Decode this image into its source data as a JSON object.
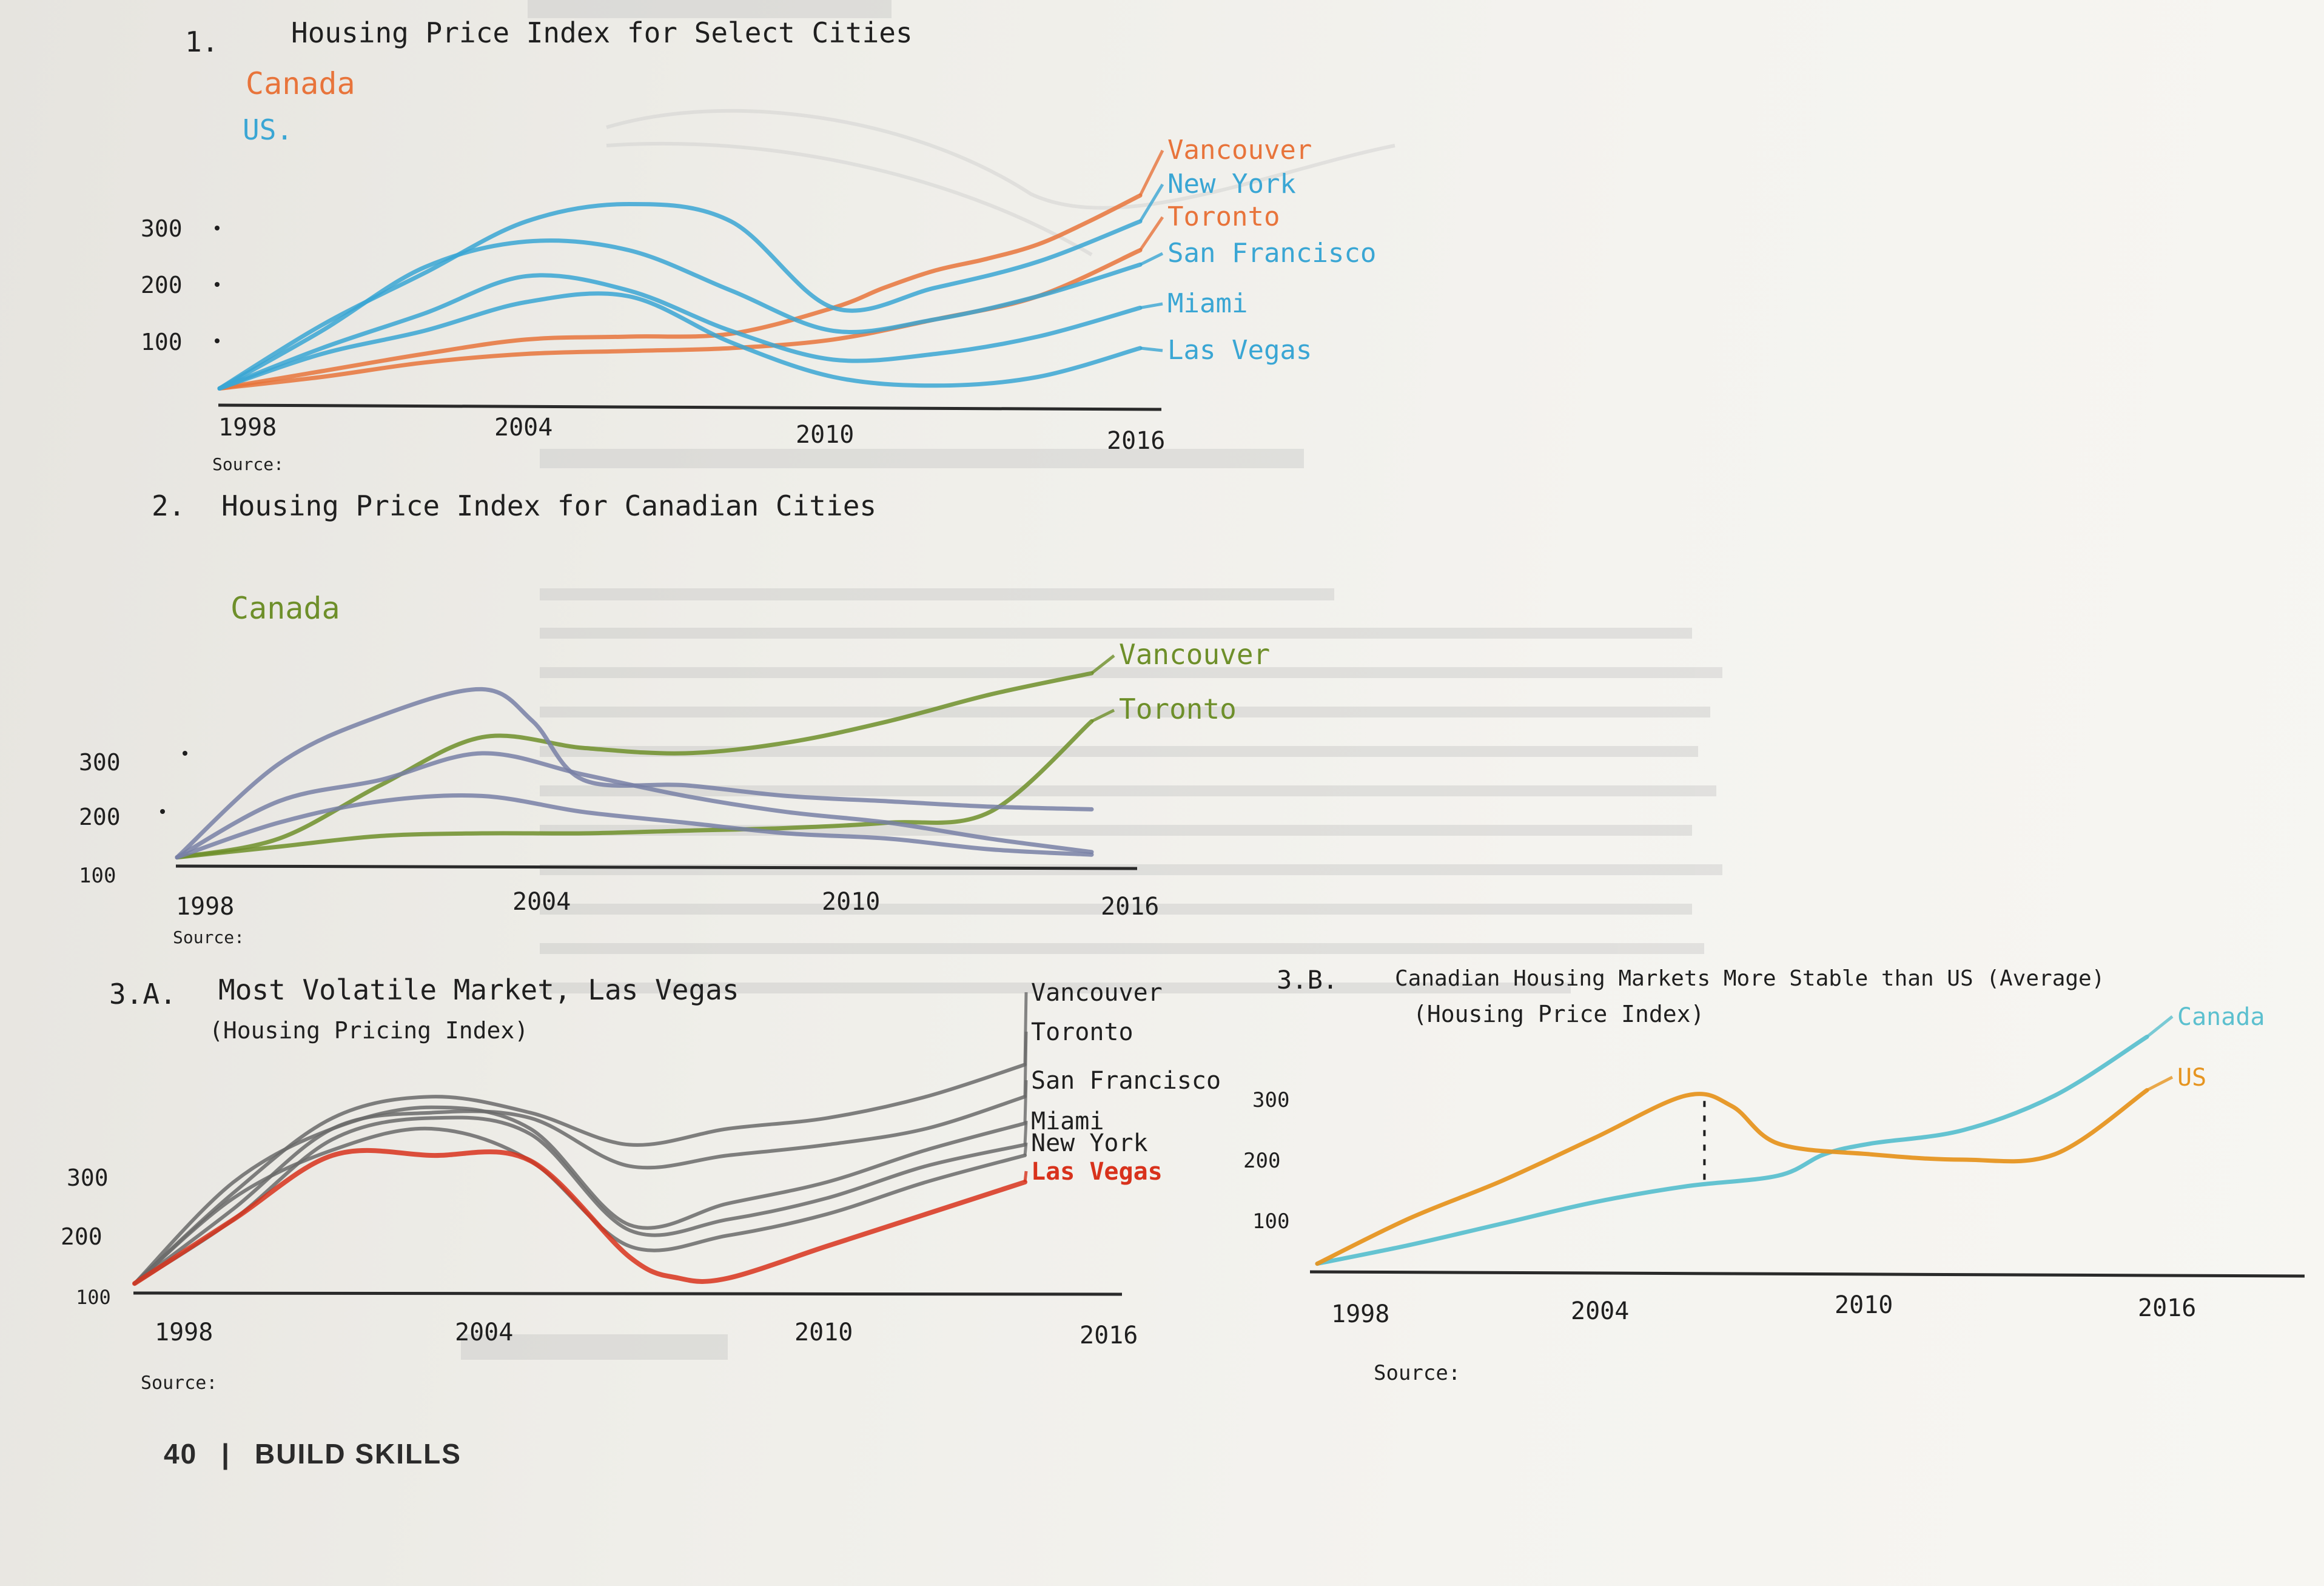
{
  "footer": {
    "page_number": "40",
    "separator": "|",
    "section": "BUILD SKILLS"
  },
  "colors": {
    "canada_orange": "#e8743b",
    "us_blue": "#3aa6d4",
    "green": "#6e8f2a",
    "slate": "#7880a6",
    "gray": "#6a6a6a",
    "red": "#d8321c",
    "amber": "#e69521",
    "teal": "#5cc0cf"
  },
  "chart_data": [
    {
      "type": "line",
      "number": "1.",
      "title": "Housing Price Index for Select Cities",
      "subtitle": "",
      "legend_key": [
        {
          "label": "Canada",
          "color": "#e8743b"
        },
        {
          "label": "US.",
          "color": "#3aa6d4"
        }
      ],
      "x_ticks": [
        "1998",
        "2004",
        "2010",
        "2016"
      ],
      "y_ticks": [
        "100",
        "200",
        "300"
      ],
      "source_label": "Source:",
      "xlim": [
        1998,
        2016
      ],
      "ylim": [
        0,
        380
      ],
      "series": [
        {
          "name": "Vancouver",
          "color": "#e8743b",
          "x": [
            1998,
            2000,
            2002,
            2004,
            2006,
            2008,
            2010,
            2011,
            2012,
            2013,
            2014,
            2015,
            2016
          ],
          "values": [
            10,
            40,
            70,
            95,
            100,
            105,
            150,
            185,
            215,
            235,
            260,
            300,
            345
          ]
        },
        {
          "name": "New York",
          "color": "#3aa6d4",
          "x": [
            1998,
            2000,
            2002,
            2004,
            2006,
            2008,
            2010,
            2012,
            2014,
            2016
          ],
          "values": [
            10,
            120,
            210,
            300,
            330,
            300,
            150,
            185,
            230,
            300
          ]
        },
        {
          "name": "Toronto",
          "color": "#e8743b",
          "x": [
            1998,
            2000,
            2002,
            2004,
            2006,
            2008,
            2010,
            2012,
            2014,
            2016
          ],
          "values": [
            10,
            30,
            55,
            70,
            75,
            80,
            95,
            130,
            170,
            250
          ]
        },
        {
          "name": "San Francisco",
          "color": "#3aa6d4",
          "x": [
            1998,
            2000,
            2002,
            2004,
            2006,
            2008,
            2010,
            2012,
            2014,
            2016
          ],
          "values": [
            10,
            110,
            220,
            265,
            250,
            180,
            110,
            130,
            170,
            225
          ]
        },
        {
          "name": "Miami",
          "color": "#3aa6d4",
          "x": [
            1998,
            2000,
            2002,
            2004,
            2006,
            2008,
            2010,
            2012,
            2014,
            2016
          ],
          "values": [
            10,
            80,
            140,
            205,
            180,
            110,
            60,
            70,
            100,
            150
          ]
        },
        {
          "name": "Las Vegas",
          "color": "#3aa6d4",
          "x": [
            1998,
            2000,
            2002,
            2004,
            2006,
            2008,
            2010,
            2012,
            2014,
            2016
          ],
          "values": [
            10,
            70,
            110,
            160,
            170,
            90,
            30,
            15,
            30,
            80
          ]
        }
      ]
    },
    {
      "type": "line",
      "number": "2.",
      "title": "Housing Price Index for Canadian Cities",
      "legend_key": [
        {
          "label": "Canada",
          "color": "#6e8f2a"
        }
      ],
      "x_ticks": [
        "1998",
        "2004",
        "2010",
        "2016"
      ],
      "y_ticks": [
        "100",
        "200",
        "300"
      ],
      "source_label": "Source:",
      "xlim": [
        1998,
        2016
      ],
      "ylim": [
        0,
        380
      ],
      "series": [
        {
          "name": "Vancouver",
          "color": "#6e8f2a",
          "x": [
            1998,
            2000,
            2002,
            2004,
            2006,
            2008,
            2010,
            2012,
            2014,
            2016
          ],
          "values": [
            5,
            40,
            140,
            230,
            210,
            200,
            220,
            260,
            310,
            350
          ]
        },
        {
          "name": "Toronto",
          "color": "#6e8f2a",
          "x": [
            1998,
            2000,
            2002,
            2004,
            2006,
            2008,
            2010,
            2012,
            2014,
            2016
          ],
          "values": [
            5,
            25,
            45,
            50,
            50,
            55,
            60,
            70,
            90,
            260
          ]
        },
        {
          "name": "",
          "color": "#7880a6",
          "x": [
            1998,
            2000,
            2002,
            2004,
            2005,
            2006,
            2008,
            2010,
            2012,
            2014,
            2016
          ],
          "values": [
            5,
            180,
            270,
            320,
            260,
            150,
            140,
            120,
            110,
            100,
            95
          ]
        },
        {
          "name": "",
          "color": "#7880a6",
          "x": [
            1998,
            2000,
            2002,
            2004,
            2006,
            2008,
            2010,
            2012,
            2014,
            2016
          ],
          "values": [
            5,
            110,
            150,
            200,
            160,
            120,
            90,
            70,
            40,
            15
          ]
        },
        {
          "name": "",
          "color": "#7880a6",
          "x": [
            1998,
            2000,
            2002,
            2004,
            2006,
            2008,
            2010,
            2012,
            2014,
            2016
          ],
          "values": [
            5,
            70,
            110,
            120,
            90,
            70,
            50,
            40,
            20,
            10
          ]
        }
      ]
    },
    {
      "type": "line",
      "number": "3.A.",
      "title": "Most Volatile Market, Las Vegas",
      "subtitle": "(Housing Pricing Index)",
      "x_ticks": [
        "1998",
        "2004",
        "2010",
        "2016"
      ],
      "y_ticks": [
        "100",
        "200",
        "300"
      ],
      "source_label": "Source:",
      "xlim": [
        1998,
        2016
      ],
      "ylim": [
        0,
        380
      ],
      "series": [
        {
          "name": "Vancouver",
          "color": "#6a6a6a",
          "x": [
            1998,
            2000,
            2002,
            2004,
            2006,
            2008,
            2010,
            2012,
            2014,
            2016
          ],
          "values": [
            10,
            180,
            320,
            360,
            330,
            270,
            300,
            320,
            360,
            420
          ]
        },
        {
          "name": "Toronto",
          "color": "#6a6a6a",
          "x": [
            1998,
            2000,
            2002,
            2004,
            2006,
            2008,
            2010,
            2012,
            2014,
            2016
          ],
          "values": [
            10,
            150,
            300,
            330,
            320,
            230,
            250,
            270,
            300,
            360
          ]
        },
        {
          "name": "San Francisco",
          "color": "#6a6a6a",
          "x": [
            1998,
            2000,
            2002,
            2004,
            2006,
            2008,
            2010,
            2012,
            2014,
            2016
          ],
          "values": [
            10,
            200,
            300,
            340,
            300,
            120,
            160,
            200,
            260,
            310
          ]
        },
        {
          "name": "Miami",
          "color": "#6a6a6a",
          "x": [
            1998,
            2000,
            2002,
            2004,
            2006,
            2008,
            2010,
            2012,
            2014,
            2016
          ],
          "values": [
            10,
            130,
            280,
            320,
            290,
            110,
            130,
            170,
            230,
            270
          ]
        },
        {
          "name": "New York",
          "color": "#6a6a6a",
          "x": [
            1998,
            2000,
            2002,
            2004,
            2006,
            2008,
            2010,
            2012,
            2014,
            2016
          ],
          "values": [
            10,
            170,
            260,
            300,
            240,
            80,
            100,
            140,
            200,
            250
          ]
        },
        {
          "name": "Las Vegas",
          "color": "#d8321c",
          "x": [
            1998,
            2000,
            2002,
            2004,
            2006,
            2008,
            2009,
            2010,
            2012,
            2014,
            2016
          ],
          "values": [
            10,
            130,
            250,
            250,
            240,
            60,
            20,
            20,
            80,
            140,
            200
          ]
        }
      ]
    },
    {
      "type": "line",
      "number": "3.B.",
      "title": "Canadian Housing Markets More Stable than US (Average)",
      "subtitle": "(Housing Price Index)",
      "x_ticks": [
        "1998",
        "2004",
        "2010",
        "2016"
      ],
      "y_ticks": [
        "100",
        "200",
        "300"
      ],
      "source_label": "Source:",
      "xlim": [
        1998,
        2016
      ],
      "ylim": [
        0,
        380
      ],
      "series": [
        {
          "name": "Canada",
          "color": "#5cc0cf",
          "x": [
            1998,
            2000,
            2002,
            2004,
            2006,
            2008,
            2009,
            2010,
            2012,
            2014,
            2016
          ],
          "values": [
            5,
            40,
            80,
            120,
            150,
            170,
            210,
            230,
            255,
            320,
            430
          ]
        },
        {
          "name": "US",
          "color": "#e69521",
          "x": [
            1998,
            2000,
            2002,
            2004,
            2006,
            2007,
            2008,
            2010,
            2012,
            2014,
            2016
          ],
          "values": [
            5,
            90,
            160,
            240,
            320,
            300,
            230,
            210,
            200,
            210,
            330
          ]
        }
      ],
      "annotation": {
        "type": "dashed-vertical",
        "x": 2006.4
      }
    }
  ]
}
